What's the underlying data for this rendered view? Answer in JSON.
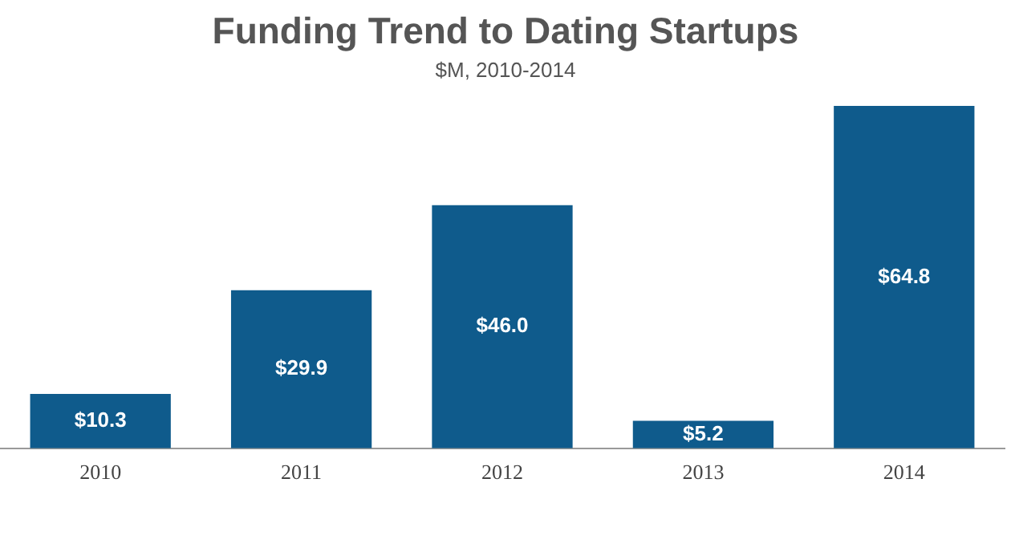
{
  "chart_data": {
    "type": "bar",
    "title": "Funding Trend to Dating Startups",
    "subtitle": "$M, 2010-2014",
    "categories": [
      "2010",
      "2011",
      "2012",
      "2013",
      "2014"
    ],
    "values": [
      10.3,
      29.9,
      46.0,
      5.2,
      64.8
    ],
    "value_labels": [
      "$10.3",
      "$29.9",
      "$46.0",
      "$5.2",
      "$64.8"
    ],
    "color": "#0f5b8c",
    "grid": false,
    "legend": false
  }
}
